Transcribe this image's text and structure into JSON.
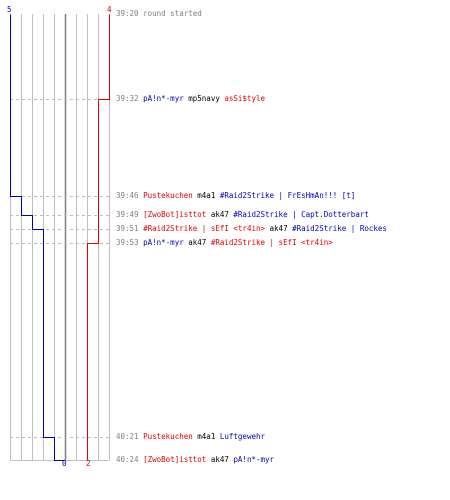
{
  "team_counts": {
    "blue_start": "5",
    "red_start": "4",
    "blue_end": "0",
    "red_end": "2"
  },
  "colors": {
    "blue_team": "#0000c0",
    "red_team": "#e00000",
    "grid": "#c0c0c0",
    "dashes": "#c0c0c0",
    "center_line": "#808080",
    "time": "#808080"
  },
  "events": [
    {
      "time": "39:20",
      "parts": [
        {
          "text": "round started",
          "color": "gray"
        }
      ]
    },
    {
      "time": "39:32",
      "parts": [
        {
          "text": "pA!n*-myr",
          "color": "blue"
        },
        {
          "text": " mp5navy ",
          "color": "black"
        },
        {
          "text": "asSi$tyle",
          "color": "red"
        }
      ]
    },
    {
      "time": "39:46",
      "parts": [
        {
          "text": "Pustekuchen",
          "color": "red"
        },
        {
          "text": " m4a1 ",
          "color": "black"
        },
        {
          "text": "#Raid2Strike | FrEsHmAn!!! [t]",
          "color": "blue"
        }
      ]
    },
    {
      "time": "39:49",
      "parts": [
        {
          "text": "[ZwoBot]isttot",
          "color": "red"
        },
        {
          "text": " ak47 ",
          "color": "black"
        },
        {
          "text": "#Raid2Strike | Capt.Dotterbart",
          "color": "blue"
        }
      ]
    },
    {
      "time": "39:51",
      "parts": [
        {
          "text": "#Raid2Strike | sEfI <tr4in>",
          "color": "red"
        },
        {
          "text": " ak47 ",
          "color": "black"
        },
        {
          "text": "#Raid2Strike | Rockes",
          "color": "blue"
        }
      ]
    },
    {
      "time": "39:53",
      "parts": [
        {
          "text": "pA!n*-myr",
          "color": "blue"
        },
        {
          "text": " ak47 ",
          "color": "black"
        },
        {
          "text": "#Raid2Strike | sEfI <tr4in>",
          "color": "red"
        }
      ]
    },
    {
      "time": "40:21",
      "parts": [
        {
          "text": "Pustekuchen",
          "color": "red"
        },
        {
          "text": " m4a1 ",
          "color": "black"
        },
        {
          "text": "Luftgewehr",
          "color": "blue"
        }
      ]
    },
    {
      "time": "40:24",
      "parts": [
        {
          "text": "[ZwoBot]isttot",
          "color": "red"
        },
        {
          "text": " ak47 ",
          "color": "black"
        },
        {
          "text": "pA!n*-myr",
          "color": "blue"
        }
      ]
    }
  ]
}
